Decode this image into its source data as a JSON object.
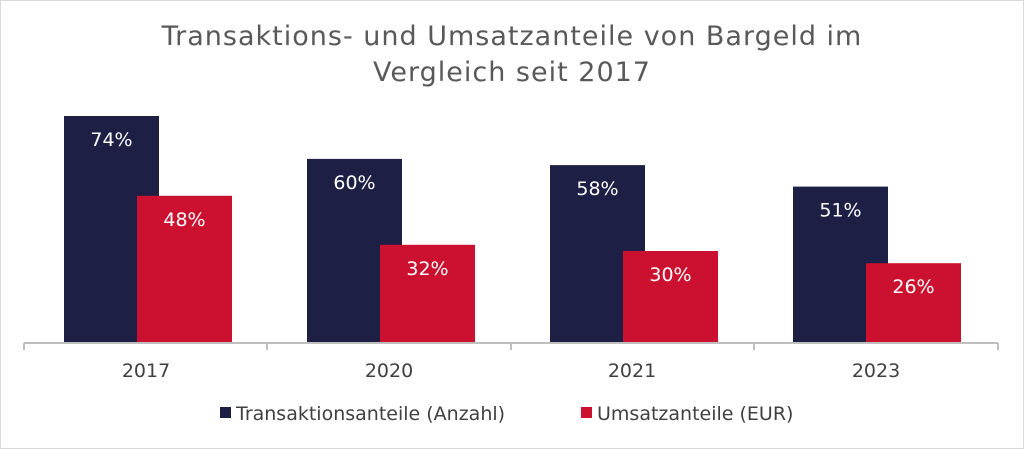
{
  "chart_data": {
    "type": "bar",
    "title_line1": "Transaktions- und Umsatzanteile von Bargeld im",
    "title_line2": "Vergleich seit 2017",
    "categories": [
      "2017",
      "2020",
      "2021",
      "2023"
    ],
    "series": [
      {
        "name": "Transaktionsanteile (Anzahl)",
        "values": [
          74,
          60,
          58,
          51
        ],
        "labels": [
          "74%",
          "60%",
          "58%",
          "51%"
        ],
        "color": "#1d1f45"
      },
      {
        "name": "Umsatzanteile (EUR)",
        "values": [
          48,
          32,
          30,
          26
        ],
        "labels": [
          "48%",
          "32%",
          "30%",
          "26%"
        ],
        "color": "#cb112f"
      }
    ],
    "xlabel": "",
    "ylabel": "",
    "ylim": [
      0,
      80
    ],
    "grid": false,
    "legend_position": "bottom",
    "axis_color": "#bfbfbf"
  }
}
